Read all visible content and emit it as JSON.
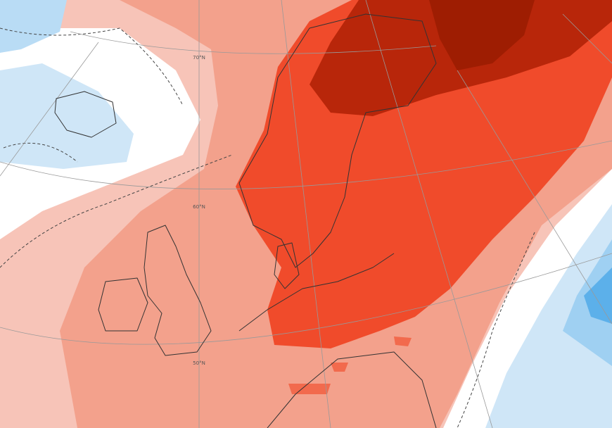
{
  "graticule_labels": [
    "70°N",
    "60°N",
    "50°N"
  ]
}
